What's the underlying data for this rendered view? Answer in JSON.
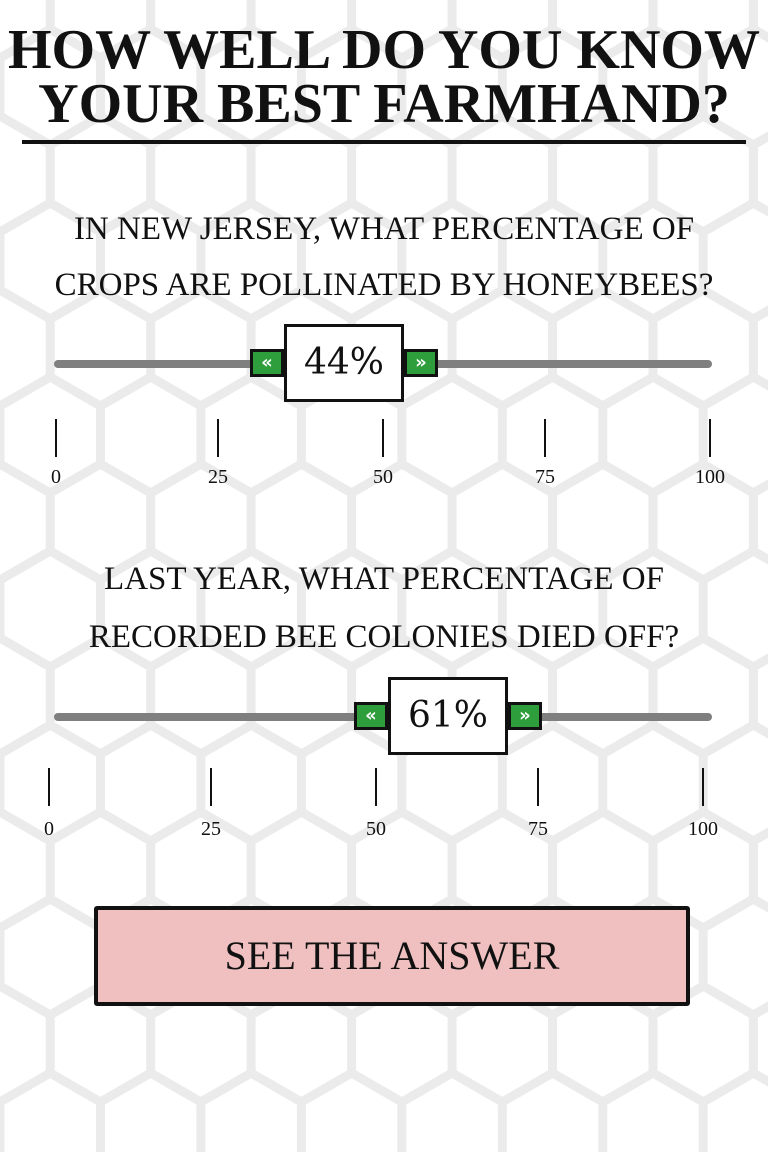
{
  "quiz": {
    "title_line1": "HOW WELL DO YOU KNOW",
    "title_line2": "YOUR BEST FARMHAND?",
    "questions": [
      {
        "line1": "IN NEW JERSEY, WHAT PERCENTAGE OF",
        "line2": "CROPS ARE POLLINATED BY HONEYBEES?",
        "value": 44,
        "value_label": "44%",
        "ticks": [
          "0",
          "25",
          "50",
          "75",
          "100"
        ]
      },
      {
        "line1": "LAST YEAR, WHAT PERCENTAGE OF",
        "line2": "RECORDED BEE COLONIES DIED OFF?",
        "value": 61,
        "value_label": "61%",
        "ticks": [
          "0",
          "25",
          "50",
          "75",
          "100"
        ]
      }
    ],
    "answer_button": "SEE THE ANSWER"
  },
  "colors": {
    "track": "#7f7f7f",
    "arrow_fill": "#2e9d3c",
    "button_fill": "#f0c0c0",
    "ink": "#111111",
    "hex_pattern": "#ebebeb"
  },
  "icons": {
    "decrease": "double-chevron-left-icon",
    "increase": "double-chevron-right-icon"
  }
}
